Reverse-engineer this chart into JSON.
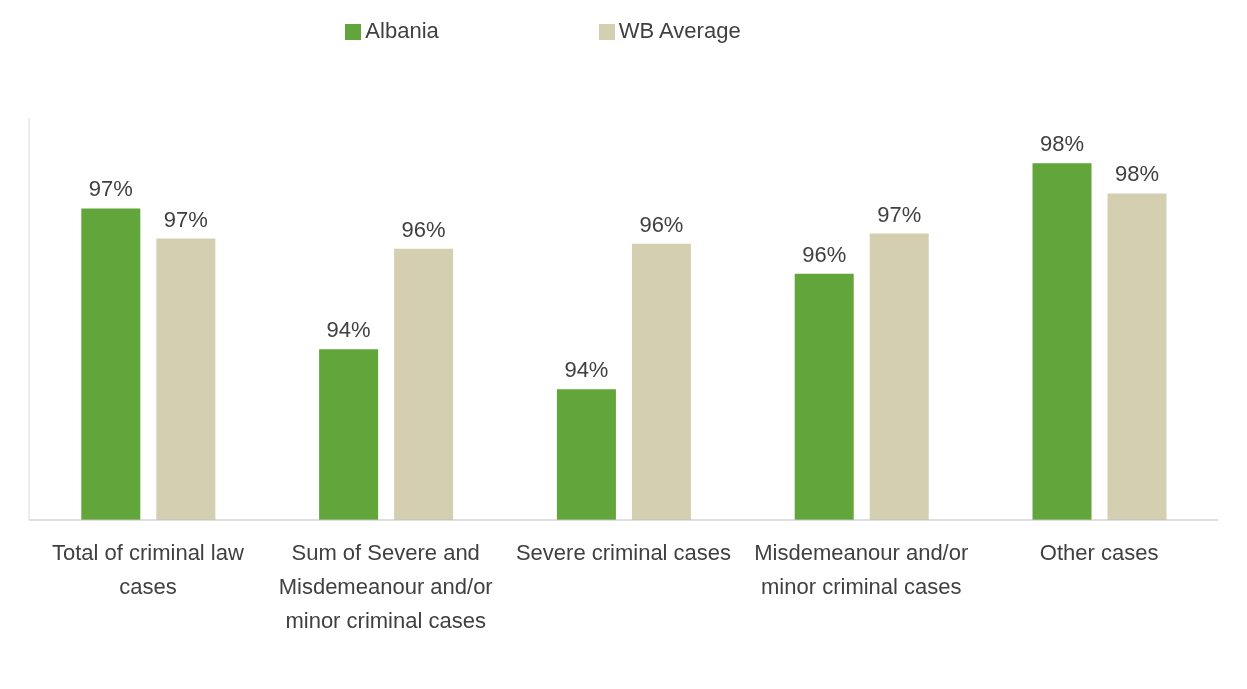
{
  "chart_data": {
    "type": "bar",
    "legend": "top",
    "ylim": [
      91,
      99
    ],
    "tick_labels": "x",
    "categories": [
      "Total of criminal law cases",
      "Sum of Severe and Misdemeanour and/or minor criminal cases",
      "Severe criminal cases",
      "Misdemeanour and/or minor criminal cases",
      "Other cases"
    ],
    "series": [
      {
        "name": "Albania",
        "color": "#62a53a",
        "values": [
          97.2,
          94.4,
          93.6,
          95.9,
          98.1
        ],
        "value_labels": [
          "97%",
          "94%",
          "94%",
          "96%",
          "98%"
        ]
      },
      {
        "name": "WB Average",
        "color": "#d3cfb0",
        "values": [
          96.6,
          96.4,
          96.5,
          96.7,
          97.5
        ],
        "value_labels": [
          "97%",
          "96%",
          "96%",
          "97%",
          "98%"
        ]
      }
    ]
  }
}
